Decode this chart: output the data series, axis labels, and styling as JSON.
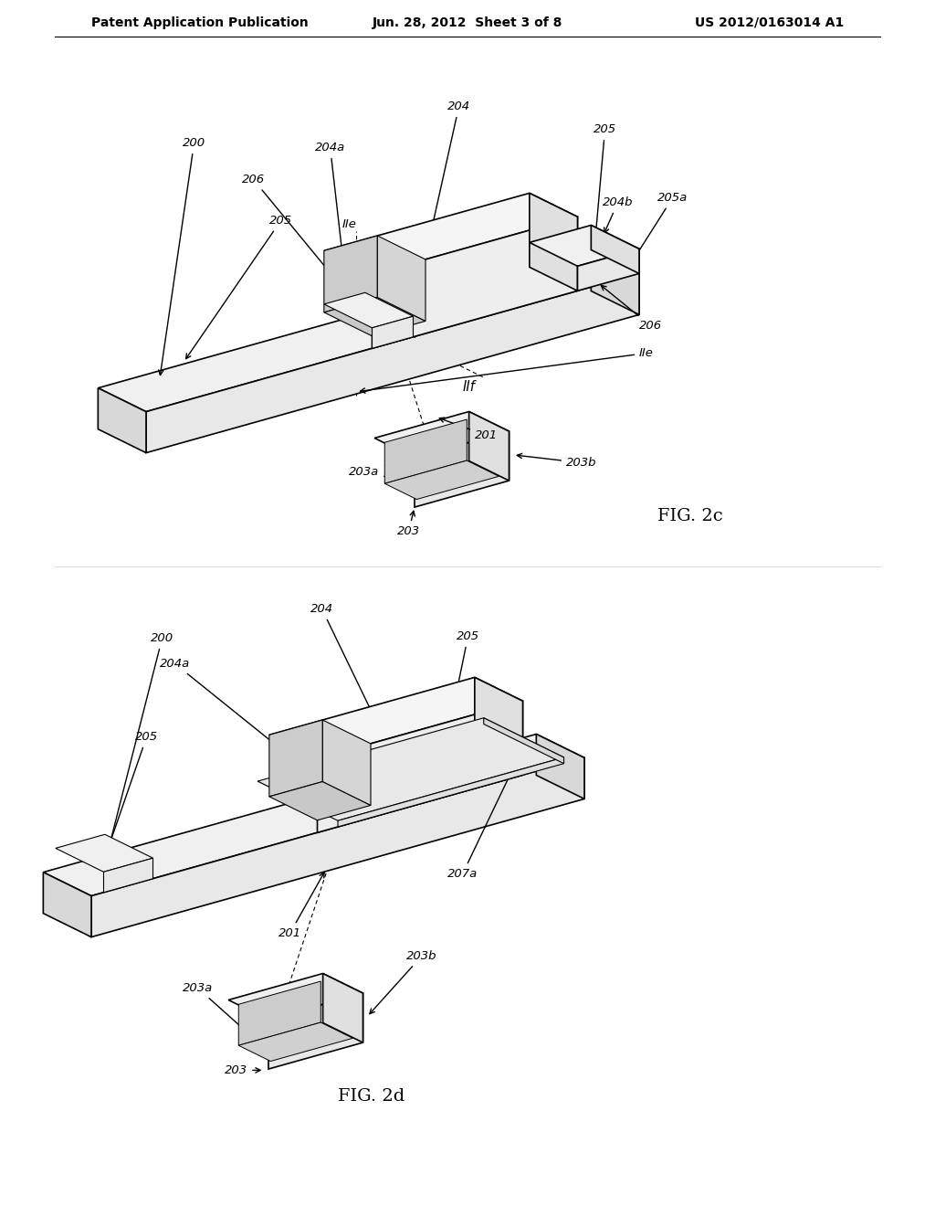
{
  "bg_color": "#ffffff",
  "line_color": "#000000",
  "header_left": "Patent Application Publication",
  "header_mid": "Jun. 28, 2012  Sheet 3 of 8",
  "header_right": "US 2012/0163014 A1",
  "fig2c_label": "FIG. 2c",
  "fig2d_label": "FIG. 2d",
  "header_fontsize": 10,
  "label_fontsize": 10,
  "ref_fontsize": 9.5,
  "fig_label_fontsize": 14
}
